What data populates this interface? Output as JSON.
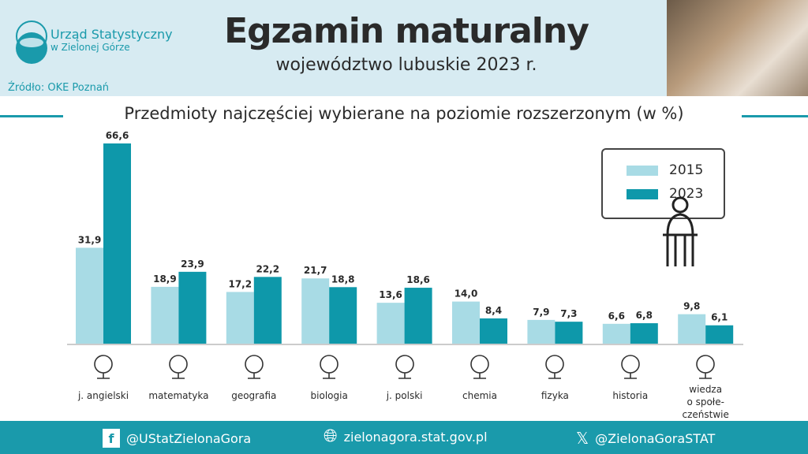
{
  "header": {
    "org_line1": "Urząd Statystyczny",
    "org_line2": "w Zielonej Górze",
    "source": "Źródło: OKE Poznań",
    "title": "Egzamin maturalny",
    "subtitle": "województwo lubuskie 2023 r."
  },
  "chart_data": {
    "type": "bar",
    "title": "Przedmioty najczęściej wybierane na poziomie rozszerzonym (w %)",
    "categories": [
      "j. angielski",
      "matematyka",
      "geografia",
      "biologia",
      "j. polski",
      "chemia",
      "fizyka",
      "historia",
      "wiedza o społe-czeństwie"
    ],
    "series": [
      {
        "name": "2015",
        "color": "#a8dbe5",
        "values": [
          31.9,
          18.9,
          17.2,
          21.7,
          13.6,
          14.0,
          7.9,
          6.6,
          9.8
        ]
      },
      {
        "name": "2023",
        "color": "#0e98aa",
        "values": [
          66.6,
          23.9,
          22.2,
          18.8,
          18.6,
          8.4,
          7.3,
          6.8,
          6.1
        ]
      }
    ],
    "value_labels": [
      [
        "31,9",
        "18,9",
        "17,2",
        "21,7",
        "13,6",
        "14,0",
        "7,9",
        "6,6",
        "9,8"
      ],
      [
        "66,6",
        "23,9",
        "22,2",
        "18,8",
        "18,6",
        "8,4",
        "7,3",
        "6,8",
        "6,1"
      ]
    ],
    "ylim": [
      0,
      70
    ],
    "legend": "top-right",
    "grid": false
  },
  "category_lines": [
    [
      "j. angielski"
    ],
    [
      "matematyka"
    ],
    [
      "geografia"
    ],
    [
      "biologia"
    ],
    [
      "j. polski"
    ],
    [
      "chemia"
    ],
    [
      "fizyka"
    ],
    [
      "historia"
    ],
    [
      "wiedza",
      "o społe-",
      "czeństwie"
    ]
  ],
  "icons": [
    "speech-bubbles-hello-hi",
    "geometry-tools",
    "globe",
    "microscope",
    "books",
    "flask",
    "atom",
    "bust-column",
    "people-magnifier"
  ],
  "footer": {
    "facebook": "@UStatZielonaGora",
    "website": "zielonagora.stat.gov.pl",
    "x": "@ZielonaGoraSTAT"
  }
}
